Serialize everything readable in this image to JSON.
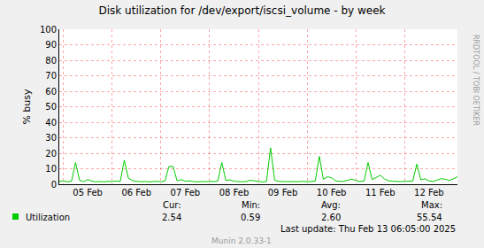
{
  "chart_data": {
    "type": "line",
    "title": "Disk utilization for /dev/export/iscsi_volume - by week",
    "y_label": "% busy",
    "categories": [
      null,
      null,
      null,
      null,
      null,
      null,
      null,
      "05 Feb",
      null,
      null,
      null,
      null,
      null,
      null,
      null,
      null,
      null,
      null,
      null,
      "06 Feb",
      null,
      null,
      null,
      null,
      null,
      null,
      null,
      null,
      null,
      null,
      null,
      "07 Feb",
      null,
      null,
      null,
      null,
      null,
      null,
      null,
      null,
      null,
      null,
      null,
      "08 Feb",
      null,
      null,
      null,
      null,
      null,
      null,
      null,
      null,
      null,
      null,
      null,
      "09 Feb",
      null,
      null,
      null,
      null,
      null,
      null,
      null,
      null,
      null,
      null,
      null,
      "10 Feb",
      null,
      null,
      null,
      null,
      null,
      null,
      null,
      null,
      null,
      null,
      null,
      "11 Feb",
      null,
      null,
      null,
      null,
      null,
      null,
      null,
      null,
      null,
      null,
      null,
      "12 Feb",
      null,
      null,
      null,
      null,
      null,
      null,
      null
    ],
    "series": [
      {
        "name": "Utilization",
        "color": "#00cc00",
        "values": [
          1.8,
          2.2,
          1.6,
          1.9,
          14,
          2.5,
          1.7,
          3.0,
          2.0,
          1.6,
          1.8,
          1.5,
          1.9,
          1.7,
          2.1,
          1.8,
          15.5,
          4.0,
          2.3,
          2.0,
          1.6,
          1.8,
          1.5,
          1.7,
          1.9,
          1.6,
          2.0,
          11.5,
          11.5,
          2.1,
          3.0,
          1.9,
          2.2,
          1.7,
          1.5,
          1.8,
          1.6,
          1.9,
          1.7,
          2.0,
          14,
          2.4,
          2.8,
          1.9,
          1.7,
          1.6,
          1.8,
          2.6,
          2.2,
          1.7,
          1.5,
          1.8,
          23.5,
          2.6,
          1.9,
          1.7,
          1.6,
          1.8,
          1.5,
          1.7,
          1.9,
          1.6,
          1.8,
          2.0,
          18,
          3.2,
          4.8,
          4.2,
          2.2,
          1.8,
          1.9,
          2.8,
          3.3,
          2.4,
          1.8,
          2.0,
          14,
          3.0,
          4.5,
          5.8,
          3.5,
          2.2,
          2.0,
          1.8,
          1.7,
          1.9,
          2.1,
          2.0,
          13,
          2.8,
          3.5,
          2.1,
          1.8,
          2.6,
          3.6,
          3.2,
          2.4,
          3.5,
          4.8
        ]
      }
    ],
    "ylim": [
      0,
      100
    ],
    "yticks": [
      0,
      10,
      20,
      30,
      40,
      50,
      60,
      70,
      80,
      90,
      100
    ],
    "grid": true,
    "legend": "bottom",
    "stats": {
      "headers": [
        "Cur:",
        "Min:",
        "Avg:",
        "Max:"
      ],
      "values": [
        "2.54",
        "0.59",
        "2.60",
        "55.54"
      ]
    },
    "annotations": [
      "Last update: Thu Feb 13 06:05:00 2025",
      "Munin 2.0.33-1",
      "RRDTOOL / TOBI OETIKER"
    ]
  }
}
